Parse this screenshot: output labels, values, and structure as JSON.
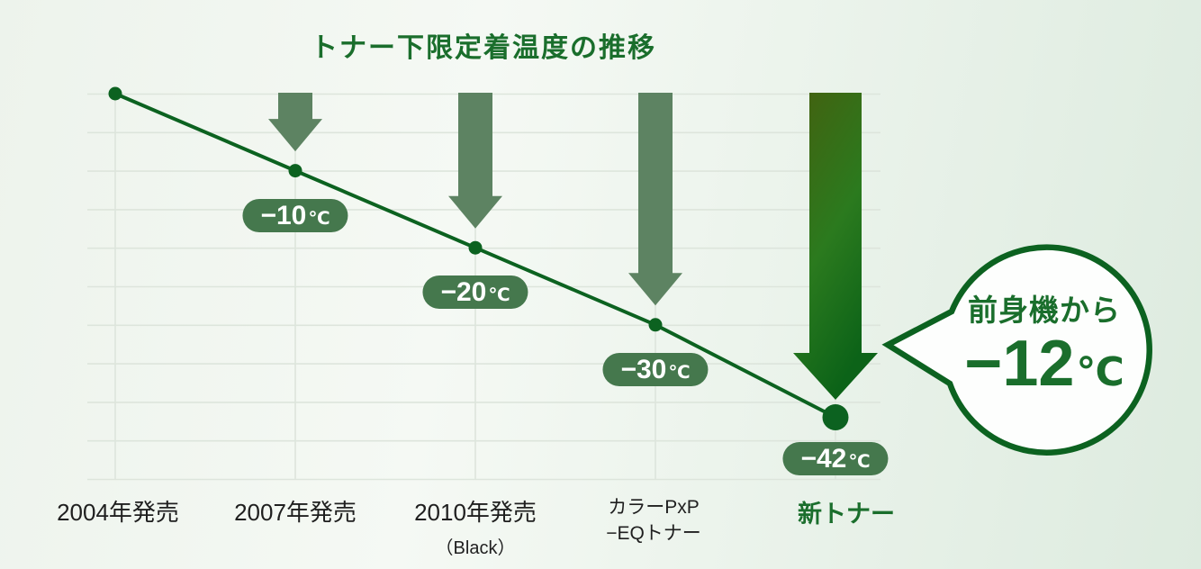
{
  "chart_data": {
    "type": "line",
    "title": "トナー下限定着温度の推移",
    "x_categories": [
      {
        "line1": "2004年発売",
        "line2": "",
        "style": "xl-year"
      },
      {
        "line1": "2007年発売",
        "line2": "",
        "style": "xl-year"
      },
      {
        "line1": "2010年発売",
        "line2": "（Black）",
        "style": "xl-year"
      },
      {
        "line1": "カラーPxP",
        "line2": "−EQトナー",
        "style": "xl-multi"
      },
      {
        "line1": "新トナー",
        "line2": "",
        "style": "xl-new"
      }
    ],
    "values": [
      0,
      -10,
      -20,
      -30,
      -42
    ],
    "unit": "℃",
    "point_labels": [
      "",
      "−10",
      "−20",
      "−30",
      "−42"
    ],
    "xlabel": "",
    "ylabel": "",
    "ylim": [
      -50,
      0
    ],
    "grid": true,
    "legend": false,
    "annotation": {
      "line1": "前身機から",
      "value": "−12",
      "unit": "℃"
    }
  },
  "colors": {
    "title_green": "#1a6e2c",
    "line_green": "#0c6220",
    "pill_green": "#45784d",
    "arrow_sage": "#5d8362",
    "arrow_dark_top": "#44600f",
    "arrow_dark_mid": "#2b7a1e",
    "arrow_dark_bottom": "#0c6318",
    "grid_line": "#dde5dc",
    "label_dark": "#1f1f1f",
    "bubble_fill": "#fdfefd",
    "bg_left": "#edf3ec",
    "bg_mid": "#f5f9f4",
    "bg_right": "#ddebdf"
  }
}
